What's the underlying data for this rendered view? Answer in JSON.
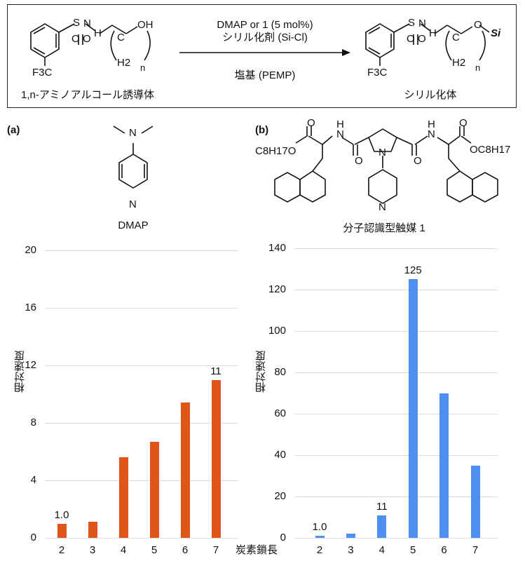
{
  "scheme": {
    "reactant_label": "1,n-アミノアルコール誘導体",
    "product_label": "シリル化体",
    "arrow_top_line1": "DMAP or 1 (5 mol%)",
    "arrow_top_line2": "シリル化剤 (Si-Cl)",
    "arrow_bottom": "塩基 (PEMP)",
    "atoms": {
      "S": "S",
      "O": "O",
      "N": "N",
      "H": "H",
      "OH": "OH",
      "C": "C",
      "F3C": "F3C",
      "H2": "H2",
      "n": "n",
      "Si": "Si"
    }
  },
  "panel_a": {
    "tag": "(a)",
    "catalyst_name": "DMAP",
    "atoms": {
      "N": "N"
    }
  },
  "panel_b": {
    "tag": "(b)",
    "catalyst_name": "分子認識型触媒 1",
    "atoms": {
      "C8H17O": "C8H17O",
      "OC8H17": "OC8H17",
      "O": "O",
      "N": "N",
      "H": "H"
    }
  },
  "x_axis_label": "炭素鎖長",
  "chart_data": [
    {
      "type": "bar",
      "panel": "a",
      "categories": [
        "2",
        "3",
        "4",
        "5",
        "6",
        "7"
      ],
      "values": [
        1.0,
        1.1,
        5.6,
        6.7,
        9.4,
        11
      ],
      "data_labels": {
        "0": "1.0",
        "5": "11"
      },
      "ylabel": "相対速度",
      "xlabel": "炭素鎖長",
      "ylim": [
        0,
        20
      ],
      "yticks": [
        "0",
        "4",
        "8",
        "12",
        "16",
        "20"
      ],
      "grid": true,
      "color": "#e0561a"
    },
    {
      "type": "bar",
      "panel": "b",
      "categories": [
        "2",
        "3",
        "4",
        "5",
        "6",
        "7"
      ],
      "values": [
        1.0,
        2,
        11,
        125,
        70,
        35
      ],
      "data_labels": {
        "0": "1.0",
        "2": "11",
        "3": "125"
      },
      "ylabel": "相対速度",
      "xlabel": "",
      "ylim": [
        0,
        140
      ],
      "yticks": [
        "0",
        "20",
        "40",
        "60",
        "80",
        "100",
        "120",
        "140"
      ],
      "grid": true,
      "color": "#4f8ff0"
    }
  ]
}
